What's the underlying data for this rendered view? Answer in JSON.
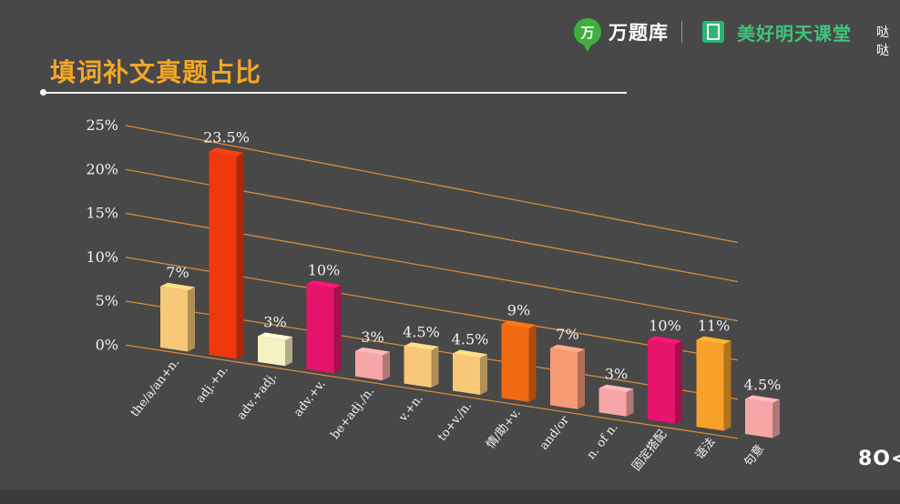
{
  "header": {
    "logo_glyph": "万",
    "brand": "万题库",
    "sub_brand": "美好明天课堂",
    "corner_text": "哒哒"
  },
  "slide": {
    "title": "填词补文真题占比"
  },
  "nav": {
    "label": "8O<"
  },
  "colors": {
    "background": "#484848",
    "title": "#f5a623",
    "gridline": "#d98b3a"
  },
  "chart_data": {
    "type": "bar",
    "title": "",
    "xlabel": "",
    "ylabel": "",
    "ylim": [
      0,
      25
    ],
    "yticks": [
      "0%",
      "5%",
      "10%",
      "15%",
      "20%",
      "25%"
    ],
    "grid": true,
    "categories": [
      "the/a/an+n.",
      "adj.+n.",
      "adv.+adj.",
      "adv.+v.",
      "be+adj./n.",
      "v.+n.",
      "to+v./n.",
      "情/助+v.",
      "and/or",
      "n. of n.",
      "固定搭配",
      "语法",
      "句意"
    ],
    "values": [
      7,
      23.5,
      3,
      10,
      3,
      4.5,
      4.5,
      9,
      7,
      3,
      10,
      11,
      4.5
    ],
    "data_labels": [
      "7%",
      "23.5%",
      "3%",
      "10%",
      "3%",
      "4.5%",
      "4.5%",
      "9%",
      "7%",
      "3%",
      "10%",
      "11%",
      "4.5%"
    ],
    "bar_colors": [
      "#f6c878",
      "#f0380e",
      "#f7f0c0",
      "#e6146a",
      "#f7a6a6",
      "#f6c878",
      "#f6c878",
      "#f06a12",
      "#f79a76",
      "#f7a6a6",
      "#e6146a",
      "#f7a12a",
      "#f7a6a6"
    ]
  }
}
